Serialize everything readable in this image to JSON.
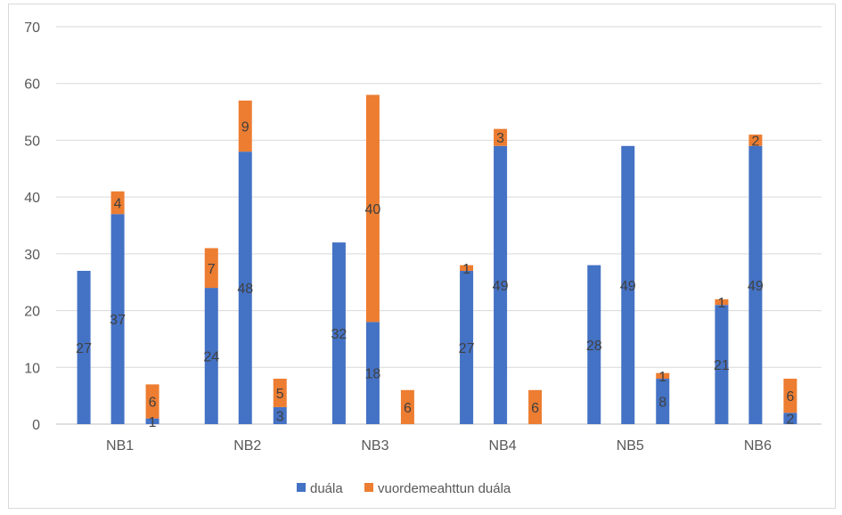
{
  "chart_data": {
    "type": "bar",
    "stacked": true,
    "groups": [
      "NB1",
      "NB2",
      "NB3",
      "NB4",
      "NB5",
      "NB6"
    ],
    "bars": [
      [
        {
          "duala": 27,
          "vuordemeahttun": 0
        },
        {
          "duala": 37,
          "vuordemeahttun": 4
        },
        {
          "duala": 1,
          "vuordemeahttun": 6
        }
      ],
      [
        {
          "duala": 24,
          "vuordemeahttun": 7
        },
        {
          "duala": 48,
          "vuordemeahttun": 9
        },
        {
          "duala": 3,
          "vuordemeahttun": 5
        }
      ],
      [
        {
          "duala": 32,
          "vuordemeahttun": 0
        },
        {
          "duala": 18,
          "vuordemeahttun": 40
        },
        {
          "duala": 0,
          "vuordemeahttun": 6
        }
      ],
      [
        {
          "duala": 27,
          "vuordemeahttun": 1
        },
        {
          "duala": 49,
          "vuordemeahttun": 3
        },
        {
          "duala": 0,
          "vuordemeahttun": 6
        }
      ],
      [
        {
          "duala": 28,
          "vuordemeahttun": 0
        },
        {
          "duala": 49,
          "vuordemeahttun": 0
        },
        {
          "duala": 8,
          "vuordemeahttun": 1
        }
      ],
      [
        {
          "duala": 21,
          "vuordemeahttun": 1
        },
        {
          "duala": 49,
          "vuordemeahttun": 2
        },
        {
          "duala": 2,
          "vuordemeahttun": 6
        }
      ]
    ],
    "series": [
      {
        "key": "duala",
        "name": "duála",
        "color": "#4472c4"
      },
      {
        "key": "vuordemeahttun",
        "name": "vuordemeahttun duála",
        "color": "#ed7d31"
      }
    ],
    "ylim": [
      0,
      70
    ],
    "yticks": [
      0,
      10,
      20,
      30,
      40,
      50,
      60,
      70
    ],
    "grid": true,
    "legend_position": "bottom",
    "title": "",
    "xlabel": "",
    "ylabel": ""
  }
}
